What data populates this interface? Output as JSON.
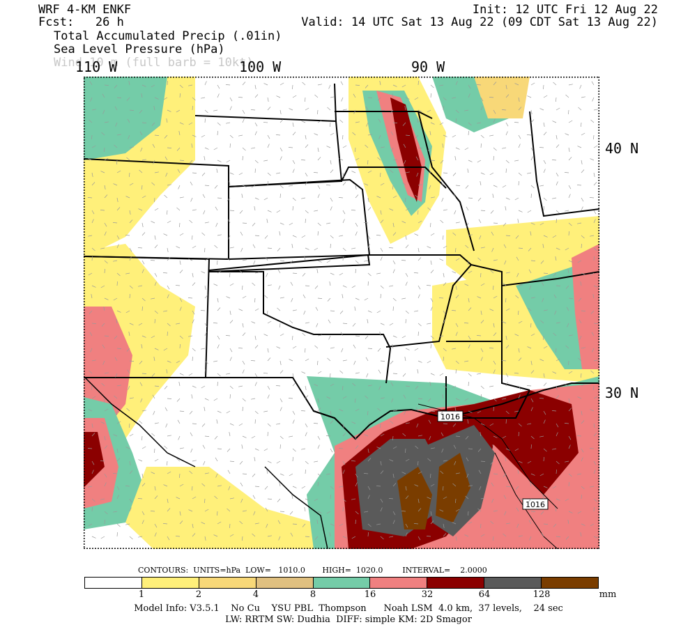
{
  "header": {
    "model": "WRF 4-KM ENKF",
    "fcst": "Fcst:   26 h",
    "init": "Init: 12 UTC Fri 12 Aug 22",
    "valid": "Valid: 14 UTC Sat 13 Aug 22 (09 CDT Sat 13 Aug 22)",
    "field1": "Total Accumulated Precip (.01in)",
    "field2": "Sea Level Pressure (hPa)",
    "field3": "Wind 10 m (full barb = 10kt)"
  },
  "axes": {
    "lon_labels": [
      "110 W",
      "100 W",
      "90 W"
    ],
    "lat_labels": [
      "40 N",
      "30 N"
    ]
  },
  "isobar_labels": [
    "1016",
    "1016"
  ],
  "contours_line": "CONTOURS:  UNITS=hPa  LOW=   1010.0       HIGH=  1020.0        INTERVAL=    2.0000",
  "colorbar": {
    "colors": [
      "#ffffff",
      "#fff07a",
      "#f8d878",
      "#e0c080",
      "#74cca8",
      "#f08080",
      "#8b0000",
      "#5a5a5a",
      "#7a3d00"
    ],
    "ticks": [
      "1",
      "2",
      "4",
      "8",
      "16",
      "32",
      "64",
      "128"
    ],
    "unit": "mm"
  },
  "model_info": {
    "line1": "Model Info: V3.5.1    No Cu    YSU PBL  Thompson      Noah LSM  4.0 km,  37 levels,    24 sec",
    "line2": "LW: RRTM SW: Dudhia  DIFF: simple KM: 2D Smagor"
  }
}
